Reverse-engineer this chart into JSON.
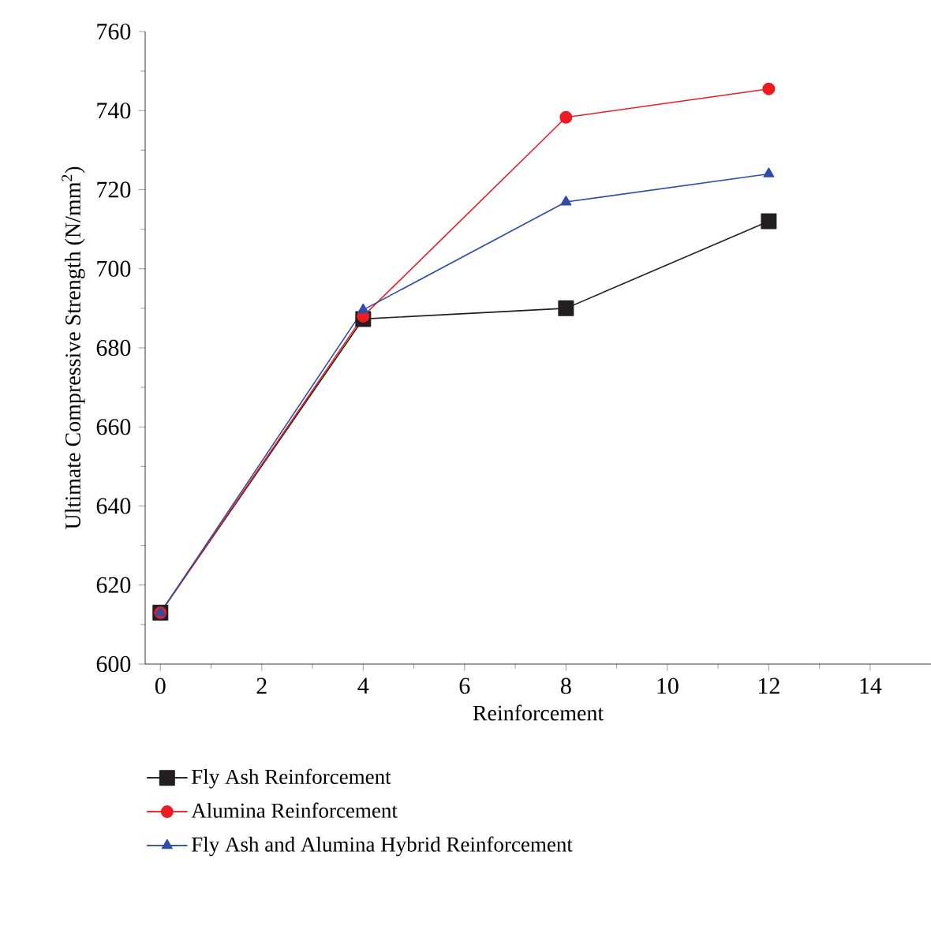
{
  "chart_data": {
    "type": "line",
    "xlabel": "Reinforcement",
    "ylabel": "Ultimate Compressive Strength (N/mm$^{2}$)",
    "x": [
      0,
      4,
      8,
      12
    ],
    "series": [
      {
        "name": "Fly Ash Reinforcement",
        "color": "#231f20",
        "marker": "square",
        "values": [
          613,
          687.3,
          690,
          712
        ]
      },
      {
        "name": "Alumina Reinforcement",
        "color": "#ed1c24",
        "marker": "circle",
        "values": [
          613,
          688,
          738.3,
          745.5
        ]
      },
      {
        "name": "Fly Ash and Alumina Hybrid Reinforcement",
        "color": "#2e4fa3",
        "marker": "triangle",
        "values": [
          613,
          689.6,
          716.9,
          724
        ]
      }
    ],
    "xlim": [
      -0.3,
      15.2
    ],
    "ylim": [
      600,
      760
    ],
    "xticks": [
      0,
      2,
      4,
      6,
      8,
      10,
      12,
      14
    ],
    "yticks": [
      600,
      620,
      640,
      660,
      680,
      700,
      720,
      740,
      760
    ],
    "grid": false,
    "legend": "bottom",
    "line_style": "solid"
  }
}
